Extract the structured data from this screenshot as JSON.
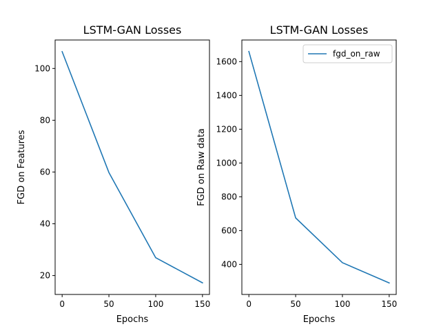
{
  "figure": {
    "background": "#ffffff"
  },
  "chart_data": [
    {
      "type": "line",
      "title": "LSTM-GAN Losses",
      "xlabel": "Epochs",
      "ylabel": "FGD on Features",
      "x": [
        0,
        50,
        100,
        150
      ],
      "series": [
        {
          "values": [
            106.5,
            59.8,
            26.9,
            17.2
          ],
          "color": "#1f77b4"
        }
      ],
      "xlim": [
        -7.5,
        157.5
      ],
      "ylim": [
        12.7,
        111.0
      ],
      "xticks": [
        0,
        50,
        100,
        150
      ],
      "yticks": [
        20,
        40,
        60,
        80,
        100
      ],
      "grid": false,
      "legend": null
    },
    {
      "type": "line",
      "title": "LSTM-GAN Losses",
      "xlabel": "Epochs",
      "ylabel": "FGD on Raw data",
      "x": [
        0,
        50,
        100,
        150
      ],
      "series": [
        {
          "name": "fgd_on_raw",
          "values": [
            1660,
            675,
            410,
            290
          ],
          "color": "#1f77b4"
        }
      ],
      "xlim": [
        -7.5,
        157.5
      ],
      "ylim": [
        222,
        1728
      ],
      "xticks": [
        0,
        50,
        100,
        150
      ],
      "yticks": [
        400,
        600,
        800,
        1000,
        1200,
        1400,
        1600
      ],
      "grid": false,
      "legend": "top-right"
    }
  ]
}
